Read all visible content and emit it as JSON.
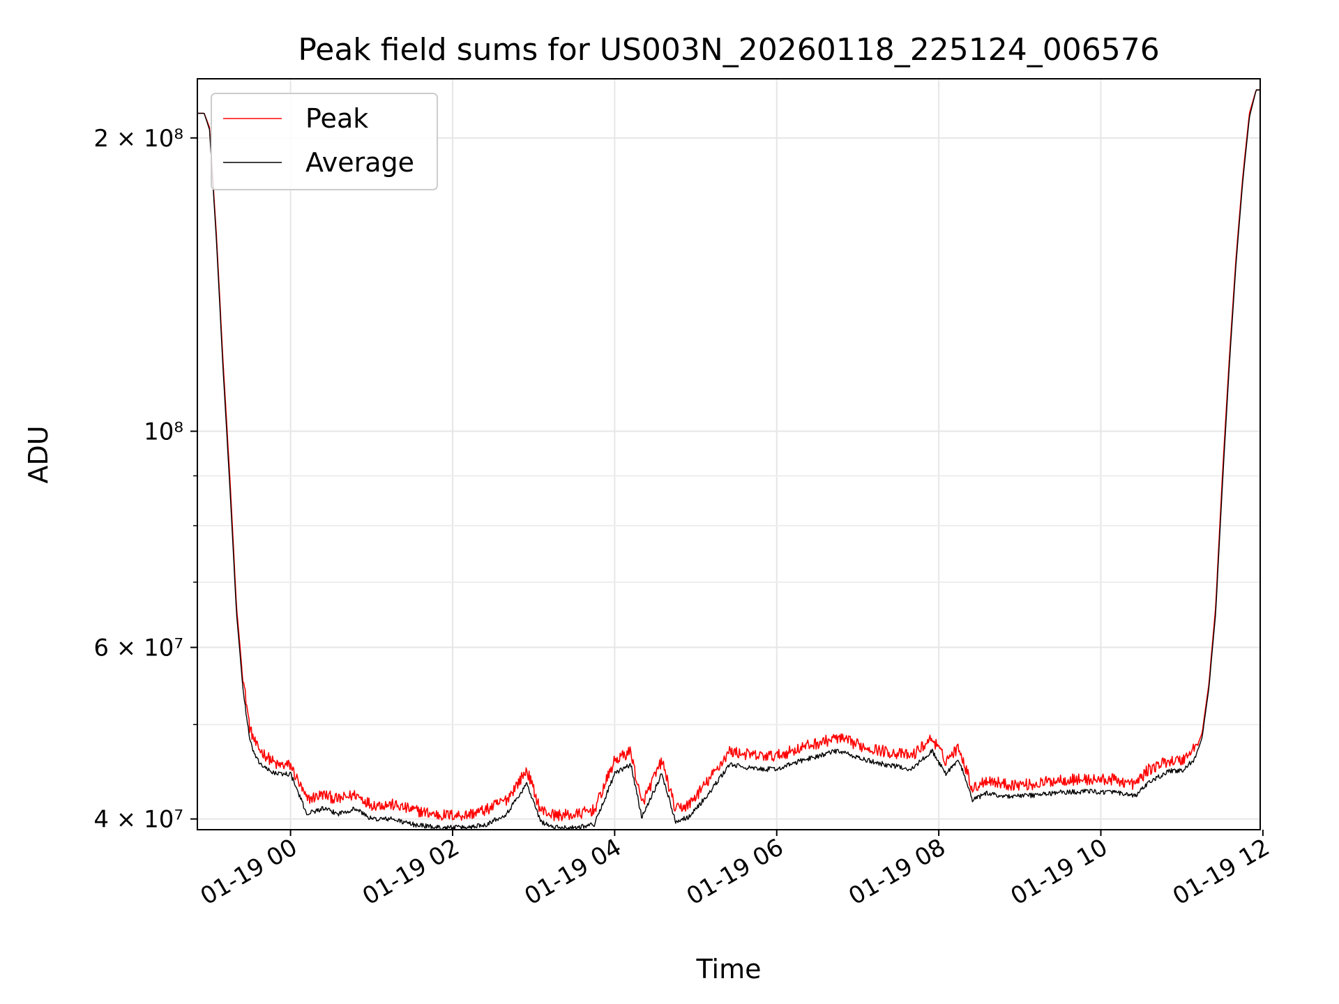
{
  "chart_data": {
    "type": "line",
    "title": "Peak field sums for US003N_20260118_225124_006576",
    "xlabel": "Time",
    "ylabel": "ADU",
    "yscale": "log",
    "xlim": [
      "01-18 22:51",
      "01-19 11:58"
    ],
    "ylim": [
      39000000,
      230000000
    ],
    "grid": true,
    "legend": {
      "position": "upper left",
      "entries": [
        "Peak",
        "Average"
      ]
    },
    "x_ticks": [
      "01-19 00",
      "01-19 02",
      "01-19 04",
      "01-19 06",
      "01-19 08",
      "01-19 10",
      "01-19 12"
    ],
    "y_ticks": [
      {
        "value": 40000000,
        "label": "4 × 10⁷"
      },
      {
        "value": 60000000,
        "label": "6 × 10⁷"
      },
      {
        "value": 100000000,
        "label": "10⁸"
      },
      {
        "value": 200000000,
        "label": "2 × 10⁸"
      }
    ],
    "series": [
      {
        "name": "Peak",
        "color": "#ff0000",
        "x": [
          "01-18 22:51",
          "01-18 22:56",
          "01-18 23:00",
          "01-18 23:05",
          "01-18 23:10",
          "01-18 23:15",
          "01-18 23:20",
          "01-18 23:25",
          "01-18 23:30",
          "01-18 23:35",
          "01-18 23:42",
          "01-18 23:50",
          "01-19 00:00",
          "01-19 00:12",
          "01-19 00:24",
          "01-19 00:35",
          "01-19 00:48",
          "01-19 01:00",
          "01-19 01:15",
          "01-19 01:30",
          "01-19 01:50",
          "01-19 02:10",
          "01-19 02:25",
          "01-19 02:40",
          "01-19 02:55",
          "01-19 03:05",
          "01-19 03:15",
          "01-19 03:30",
          "01-19 03:45",
          "01-19 04:00",
          "01-19 04:12",
          "01-19 04:20",
          "01-19 04:35",
          "01-19 04:45",
          "01-19 04:55",
          "01-19 05:10",
          "01-19 05:25",
          "01-19 05:45",
          "01-19 06:00",
          "01-19 06:20",
          "01-19 06:45",
          "01-19 07:05",
          "01-19 07:20",
          "01-19 07:40",
          "01-19 07:55",
          "01-19 08:05",
          "01-19 08:15",
          "01-19 08:25",
          "01-19 08:35",
          "01-19 08:50",
          "01-19 09:10",
          "01-19 09:30",
          "01-19 09:50",
          "01-19 10:10",
          "01-19 10:25",
          "01-19 10:35",
          "01-19 10:50",
          "01-19 11:00",
          "01-19 11:10",
          "01-19 11:15",
          "01-19 11:20",
          "01-19 11:25",
          "01-19 11:30",
          "01-19 11:35",
          "01-19 11:40",
          "01-19 11:45",
          "01-19 11:50",
          "01-19 11:55",
          "01-19 11:58"
        ],
        "values": [
          212000000,
          212000000,
          205000000,
          160000000,
          118000000,
          90000000,
          66000000,
          55000000,
          49000000,
          47000000,
          46000000,
          45000000,
          45000000,
          41500000,
          42000000,
          41500000,
          42000000,
          41000000,
          41000000,
          40500000,
          40000000,
          40000000,
          40500000,
          41500000,
          44500000,
          40500000,
          40000000,
          40000000,
          40500000,
          45500000,
          46500000,
          41000000,
          45500000,
          40500000,
          41000000,
          43500000,
          46500000,
          46000000,
          46000000,
          47000000,
          48000000,
          47000000,
          46500000,
          46000000,
          48000000,
          45500000,
          47000000,
          42500000,
          43500000,
          43000000,
          43000000,
          43500000,
          43500000,
          43500000,
          43000000,
          44500000,
          45500000,
          45500000,
          47000000,
          49000000,
          55000000,
          66000000,
          90000000,
          118000000,
          150000000,
          182000000,
          212000000,
          224000000,
          224000000
        ]
      },
      {
        "name": "Average",
        "color": "#000000",
        "x": [
          "01-18 22:51",
          "01-18 22:56",
          "01-18 23:00",
          "01-18 23:05",
          "01-18 23:10",
          "01-18 23:15",
          "01-18 23:20",
          "01-18 23:25",
          "01-18 23:30",
          "01-18 23:35",
          "01-18 23:42",
          "01-18 23:50",
          "01-19 00:00",
          "01-19 00:12",
          "01-19 00:24",
          "01-19 00:35",
          "01-19 00:48",
          "01-19 01:00",
          "01-19 01:15",
          "01-19 01:30",
          "01-19 01:50",
          "01-19 02:10",
          "01-19 02:25",
          "01-19 02:40",
          "01-19 02:55",
          "01-19 03:05",
          "01-19 03:15",
          "01-19 03:30",
          "01-19 03:45",
          "01-19 04:00",
          "01-19 04:12",
          "01-19 04:20",
          "01-19 04:35",
          "01-19 04:45",
          "01-19 04:55",
          "01-19 05:10",
          "01-19 05:25",
          "01-19 05:45",
          "01-19 06:00",
          "01-19 06:20",
          "01-19 06:45",
          "01-19 07:05",
          "01-19 07:20",
          "01-19 07:40",
          "01-19 07:55",
          "01-19 08:05",
          "01-19 08:15",
          "01-19 08:25",
          "01-19 08:35",
          "01-19 08:50",
          "01-19 09:10",
          "01-19 09:30",
          "01-19 09:50",
          "01-19 10:10",
          "01-19 10:25",
          "01-19 10:35",
          "01-19 10:50",
          "01-19 11:00",
          "01-19 11:10",
          "01-19 11:15",
          "01-19 11:20",
          "01-19 11:25",
          "01-19 11:30",
          "01-19 11:35",
          "01-19 11:40",
          "01-19 11:45",
          "01-19 11:50",
          "01-19 11:55",
          "01-19 11:58"
        ],
        "values": [
          212000000,
          212000000,
          204000000,
          158000000,
          116000000,
          88000000,
          65000000,
          54000000,
          48000000,
          46000000,
          45000000,
          44500000,
          44500000,
          40500000,
          41000000,
          40500000,
          41000000,
          40000000,
          40000000,
          39500000,
          39200000,
          39200000,
          39500000,
          40500000,
          43500000,
          39800000,
          39200000,
          39200000,
          39500000,
          44500000,
          45500000,
          40200000,
          44500000,
          39800000,
          40200000,
          42500000,
          45500000,
          45000000,
          45000000,
          46000000,
          47000000,
          46000000,
          45500000,
          45000000,
          47000000,
          44500000,
          46000000,
          41800000,
          42500000,
          42200000,
          42300000,
          42600000,
          42700000,
          42600000,
          42200000,
          43500000,
          44800000,
          44800000,
          46200000,
          48500000,
          54500000,
          65000000,
          88000000,
          116000000,
          148000000,
          180000000,
          210000000,
          224000000,
          224000000
        ]
      }
    ]
  }
}
